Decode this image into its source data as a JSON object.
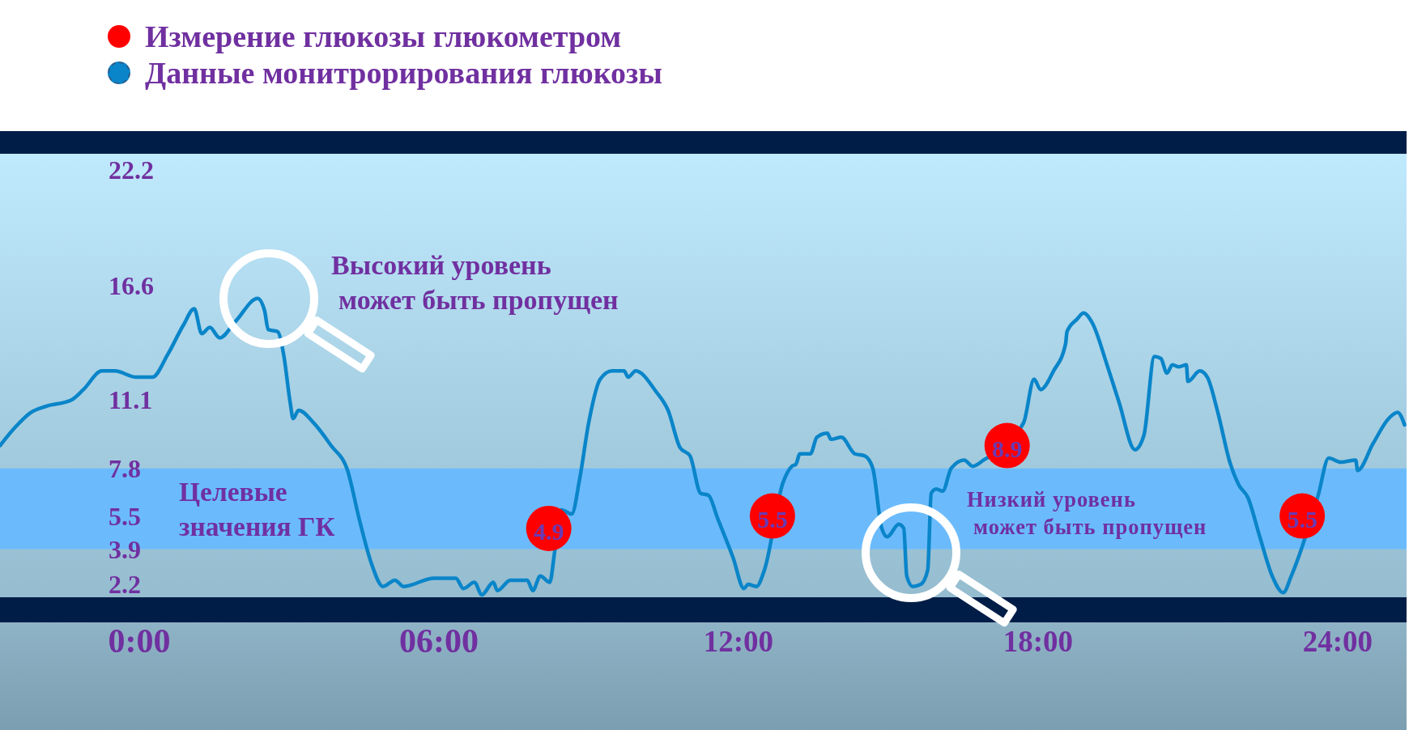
{
  "chart_data": {
    "type": "line",
    "legend": "top left",
    "xlim": [
      -2.79,
      25.38
    ],
    "xticks": [
      {
        "value": 0,
        "label": "0:00"
      },
      {
        "value": 6,
        "label": "06:00"
      },
      {
        "value": 12,
        "label": "12:00"
      },
      {
        "value": 18,
        "label": "18:00"
      },
      {
        "value": 24,
        "label": "24:00"
      }
    ],
    "ylim": [
      1.5,
      22.2
    ],
    "yticks": [
      2.2,
      3.9,
      5.5,
      7.8,
      11.1,
      16.6,
      22.2
    ],
    "bands": [
      {
        "axis": "y",
        "from": 3.9,
        "to": 7.8,
        "label": "Целевые\nзначения ГК",
        "color": "#6bbbfc"
      }
    ],
    "annotations": [
      "Высокий уровень\nможет быть пропущен",
      "Низкий уровень\nможет быть пропущен"
    ],
    "series": [
      {
        "name": "Измерение глюкозы глюкометром",
        "type": "scatter",
        "color": "#ff0000",
        "marker": "circle",
        "x": [
          8.2,
          12.68,
          17.38,
          23.29
        ],
        "values": [
          4.9,
          5.5,
          8.9,
          5.5
        ],
        "value_labels": [
          "4.9",
          "5.5",
          "8.9",
          "5.5"
        ]
      },
      {
        "name": "Данные монитрорирования глюкозы",
        "color": "#0a85c9",
        "x": [
          -2.79,
          -2.48,
          -2.17,
          -1.86,
          -1.36,
          -1.12,
          -0.75,
          -0.49,
          -0.06,
          0.26,
          0.57,
          0.88,
          1.1,
          1.25,
          1.41,
          1.61,
          1.93,
          2.37,
          2.51,
          2.58,
          2.77,
          2.89,
          3.02,
          3.08,
          3.19,
          3.49,
          3.84,
          4.17,
          4.41,
          4.65,
          4.88,
          5.12,
          5.29,
          5.9,
          6.34,
          6.49,
          6.71,
          6.86,
          7.09,
          7.17,
          7.43,
          7.77,
          7.88,
          8.03,
          8.22,
          8.32,
          8.45,
          8.66,
          8.82,
          9.0,
          9.23,
          9.47,
          9.71,
          9.79,
          9.94,
          10.35,
          10.59,
          10.83,
          11.03,
          11.24,
          11.4,
          11.58,
          11.89,
          12.11,
          12.19,
          12.36,
          12.52,
          12.89,
          13.07,
          13.15,
          13.23,
          13.44,
          13.57,
          13.78,
          13.85,
          14.06,
          14.33,
          14.53,
          14.69,
          14.87,
          14.98,
          15.21,
          15.31,
          15.37,
          15.49,
          15.65,
          15.79,
          15.86,
          15.96,
          16.09,
          16.26,
          16.52,
          16.69,
          16.91,
          17.71,
          17.92,
          18.05,
          18.31,
          18.55,
          18.58,
          18.78,
          18.91,
          19.09,
          19.38,
          19.62,
          19.94,
          20.12,
          20.33,
          20.46,
          20.58,
          20.69,
          20.82,
          20.97,
          21.0,
          21.24,
          21.39,
          21.6,
          21.84,
          22.02,
          22.2,
          22.44,
          22.69,
          22.91,
          23.07,
          23.61,
          23.82,
          24.06,
          24.36,
          24.4,
          24.71,
          25.02,
          25.2,
          25.34
        ],
        "values": [
          8.9,
          9.8,
          10.5,
          10.8,
          11.1,
          11.6,
          12.5,
          12.5,
          12.2,
          12.2,
          13.3,
          14.7,
          15.5,
          14.3,
          14.6,
          14.1,
          14.9,
          16.0,
          15.4,
          14.5,
          14.4,
          13.3,
          11.0,
          10.2,
          10.6,
          10.0,
          8.9,
          7.7,
          5.3,
          3.2,
          2.1,
          2.4,
          2.1,
          2.5,
          2.5,
          2.0,
          2.3,
          1.7,
          2.3,
          1.9,
          2.4,
          2.4,
          1.9,
          2.6,
          2.3,
          3.8,
          5.8,
          5.6,
          7.3,
          10.0,
          12.1,
          12.5,
          12.5,
          12.2,
          12.5,
          11.5,
          10.6,
          8.8,
          8.4,
          6.6,
          6.5,
          5.4,
          3.5,
          2.0,
          2.2,
          2.1,
          2.9,
          7.1,
          7.9,
          8.0,
          8.5,
          8.5,
          9.3,
          9.5,
          9.2,
          9.3,
          8.5,
          8.4,
          7.8,
          4.9,
          4.5,
          5.1,
          4.9,
          2.6,
          2.1,
          2.2,
          2.9,
          6.6,
          6.8,
          6.7,
          7.8,
          8.2,
          7.9,
          8.2,
          10.0,
          12.1,
          11.6,
          12.5,
          13.8,
          14.4,
          15.0,
          15.3,
          14.8,
          12.8,
          11.0,
          8.7,
          9.4,
          13.2,
          13.1,
          12.4,
          12.8,
          12.7,
          12.8,
          12.0,
          12.5,
          12.2,
          10.5,
          8.1,
          7.0,
          6.4,
          4.5,
          2.6,
          1.8,
          2.6,
          6.5,
          8.3,
          8.1,
          8.2,
          7.7,
          9.0,
          10.2,
          10.5,
          9.9
        ]
      }
    ]
  }
}
